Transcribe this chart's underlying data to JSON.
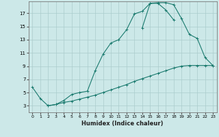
{
  "xlabel": "Humidex (Indice chaleur)",
  "bg_color": "#cce8e8",
  "grid_color": "#aacccc",
  "line_color": "#1a7a6e",
  "xlim": [
    -0.5,
    23.5
  ],
  "ylim": [
    2.0,
    18.8
  ],
  "xticks": [
    0,
    1,
    2,
    3,
    4,
    5,
    6,
    7,
    8,
    9,
    10,
    11,
    12,
    13,
    14,
    15,
    16,
    17,
    18,
    19,
    20,
    21,
    22,
    23
  ],
  "yticks": [
    3,
    5,
    7,
    9,
    11,
    13,
    15,
    17
  ],
  "curve1_y": [
    null,
    null,
    3.0,
    3.2,
    3.5,
    3.7,
    4.0,
    4.3,
    4.6,
    5.0,
    5.4,
    5.8,
    6.2,
    6.7,
    7.1,
    7.5,
    7.9,
    8.3,
    8.7,
    9.0,
    9.1,
    9.1,
    9.1,
    9.1
  ],
  "curve2_y": [
    5.8,
    4.1,
    3.0,
    3.2,
    3.8,
    4.7,
    5.0,
    5.2,
    8.3,
    10.8,
    12.5,
    13.0,
    14.5,
    16.9,
    17.3,
    18.5,
    18.5,
    17.5,
    16.0,
    null,
    null,
    null,
    null,
    null
  ],
  "curve3_y": [
    null,
    null,
    null,
    null,
    null,
    null,
    null,
    null,
    null,
    null,
    null,
    null,
    null,
    null,
    14.8,
    18.5,
    18.6,
    18.6,
    18.3,
    16.2,
    13.8,
    13.2,
    10.3,
    9.1
  ]
}
